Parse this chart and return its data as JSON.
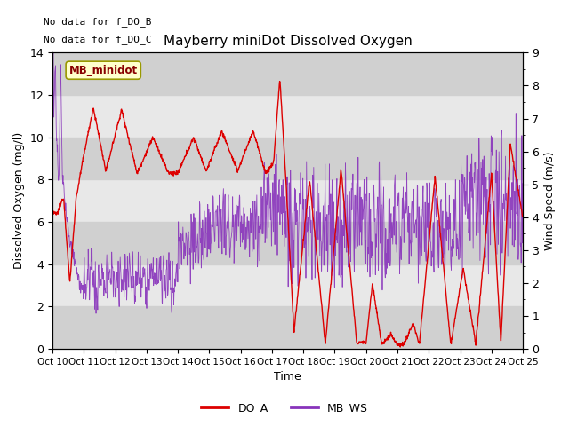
{
  "title": "Mayberry miniDot Dissolved Oxygen",
  "ylabel_left": "Dissolved Oxygen (mg/l)",
  "ylabel_right": "Wind Speed (m/s)",
  "xlabel": "Time",
  "annotation_line1": "No data for f_DO_B",
  "annotation_line2": "No data for f_DO_C",
  "legend_label_red": "DO_A",
  "legend_label_purple": "MB_WS",
  "box_label": "MB_minidot",
  "ylim_left": [
    0,
    14
  ],
  "ylim_right": [
    0,
    9.0
  ],
  "yticks_left": [
    0,
    2,
    4,
    6,
    8,
    10,
    12,
    14
  ],
  "yticks_right": [
    0.0,
    1.0,
    2.0,
    3.0,
    4.0,
    5.0,
    6.0,
    7.0,
    8.0,
    9.0
  ],
  "xtick_labels": [
    "Oct 10",
    "Oct 11",
    "Oct 12",
    "Oct 13",
    "Oct 14",
    "Oct 15",
    "Oct 16",
    "Oct 17",
    "Oct 18",
    "Oct 19",
    "Oct 20",
    "Oct 21",
    "Oct 22",
    "Oct 23",
    "Oct 24",
    "Oct 25"
  ],
  "color_red": "#dd0000",
  "color_purple": "#8833bb",
  "plot_bg_color": "#e8e8e8",
  "band_dark_color": "#d0d0d0",
  "box_fill": "#ffffcc",
  "box_edge": "#999900",
  "box_text_color": "#880000"
}
